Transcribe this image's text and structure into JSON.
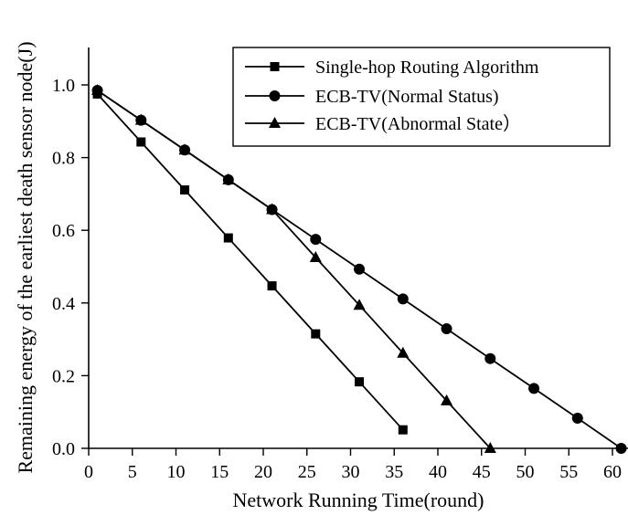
{
  "chart_data": {
    "type": "line",
    "xlabel": "Network Running Time(round)",
    "ylabel": "Remaining energy of the earliest death sensor node(J)",
    "xlim": [
      0,
      62
    ],
    "ylim": [
      0,
      1.1
    ],
    "xticks": [
      0,
      5,
      10,
      15,
      20,
      25,
      30,
      35,
      40,
      45,
      50,
      55,
      60
    ],
    "yticks": [
      0.0,
      0.2,
      0.4,
      0.6,
      0.8,
      1.0
    ],
    "ytick_labels": [
      "0.0",
      "0.2",
      "0.4",
      "0.6",
      "0.8",
      "1.0"
    ],
    "grid": false,
    "legend_position": "top-right",
    "series": [
      {
        "name": "Single-hop Routing Algorithm",
        "marker": "square",
        "x": [
          1,
          6,
          11,
          16,
          21,
          26,
          31,
          36
        ],
        "y": [
          0.975,
          0.843,
          0.711,
          0.579,
          0.447,
          0.315,
          0.183,
          0.051
        ]
      },
      {
        "name": "ECB-TV(Normal Status)",
        "marker": "circle",
        "x": [
          1,
          6,
          11,
          16,
          21,
          26,
          31,
          36,
          41,
          46,
          51,
          56,
          61
        ],
        "y": [
          0.985,
          0.903,
          0.821,
          0.739,
          0.657,
          0.575,
          0.493,
          0.411,
          0.329,
          0.247,
          0.165,
          0.083,
          0.0
        ]
      },
      {
        "name": "ECB-TV(Abnormal State）",
        "marker": "triangle",
        "x": [
          1,
          6,
          11,
          16,
          21,
          26,
          31,
          36,
          41,
          46
        ],
        "y": [
          0.985,
          0.903,
          0.821,
          0.739,
          0.657,
          0.525,
          0.394,
          0.262,
          0.131,
          0.0
        ]
      }
    ]
  }
}
